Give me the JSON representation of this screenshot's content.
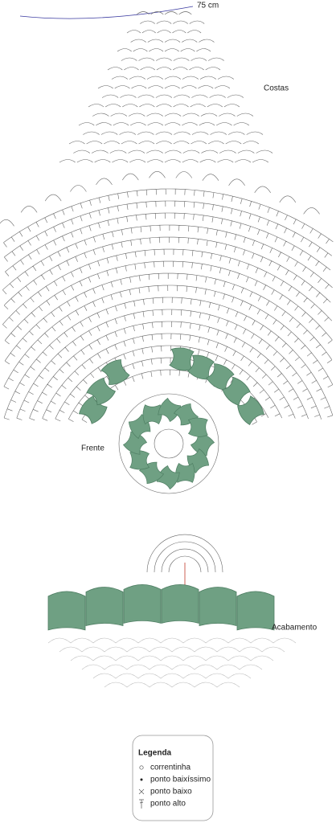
{
  "measurement": "75 cm",
  "labels": {
    "back": "Costas",
    "front": "Frente",
    "finishing": "Acabamento"
  },
  "legend": {
    "title": "Legenda",
    "items": [
      "correntinha",
      "ponto baixíssimo",
      "ponto baixo",
      "ponto alto"
    ]
  }
}
